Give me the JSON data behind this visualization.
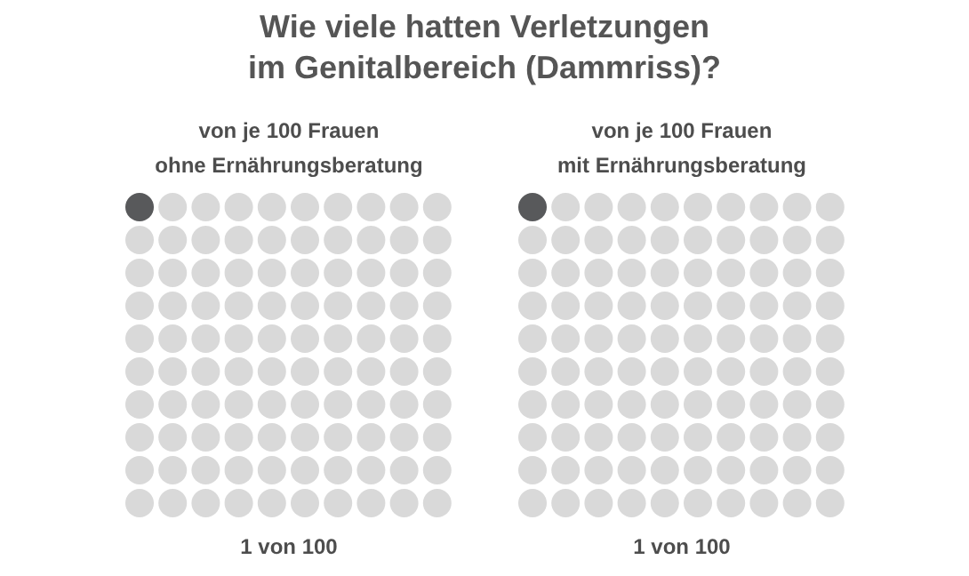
{
  "chart_data": [
    {
      "type": "other",
      "title": "Wie viele hatten Verletzungen\nim Genitalbereich (Dammriss)?",
      "subtitle": "von je 100 Frauen\nohne Ernährungsberatung",
      "categories": [
        null
      ],
      "values": [
        1
      ],
      "value_labels": [
        "1 von 100"
      ],
      "colors": [
        "#58595b"
      ],
      "color": "#d9d9d9"
    },
    {
      "type": "other",
      "subtitle": "von je 100 Frauen\nmit Ernährungsberatung",
      "categories": [
        null
      ],
      "values": [
        1
      ],
      "value_labels": [
        "1 von 100"
      ],
      "colors": [
        "#58595b"
      ],
      "color": "#d9d9d9"
    }
  ]
}
